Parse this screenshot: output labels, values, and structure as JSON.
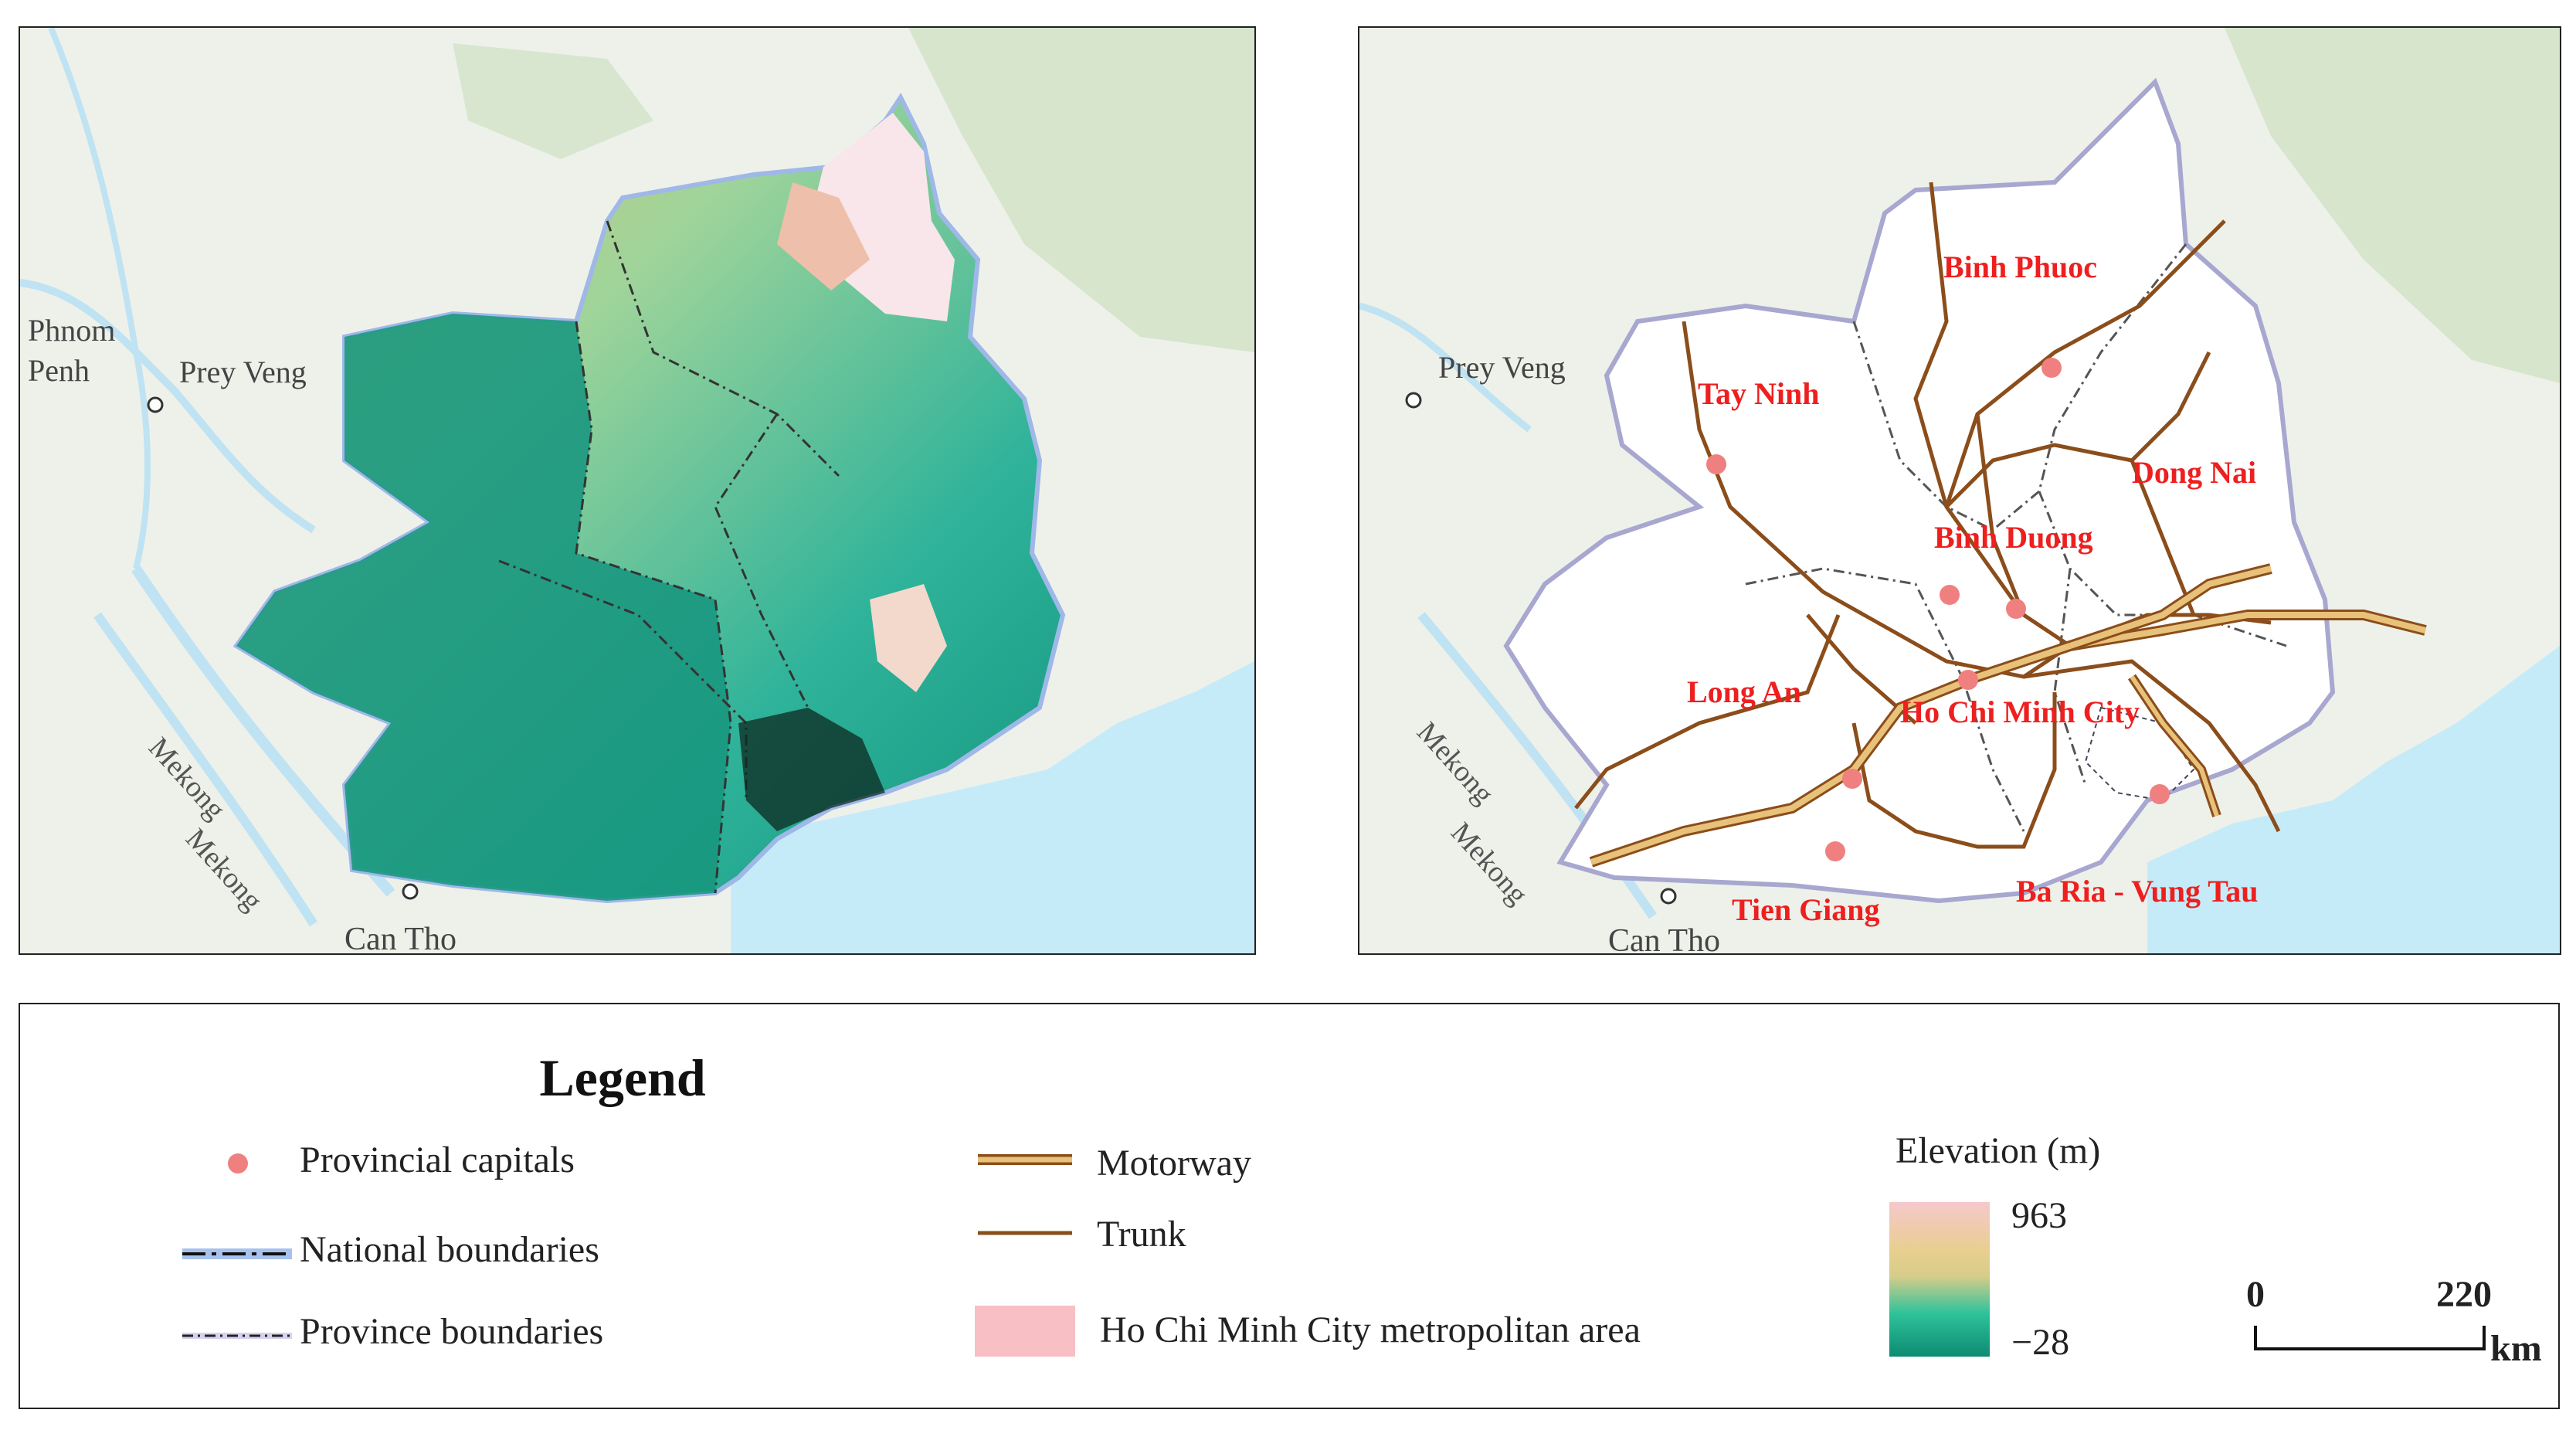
{
  "maps": {
    "left": {
      "places": {
        "phnom_penh_line1": "Phnom",
        "phnom_penh_line2": "Penh",
        "prey_veng": "Prey Veng",
        "can_tho": "Can Tho",
        "mekong_1": "Mekong",
        "mekong_2": "Mekong"
      }
    },
    "right": {
      "places": {
        "prey_veng": "Prey Veng",
        "can_tho": "Can Tho",
        "mekong_1": "Mekong",
        "mekong_2": "Mekong"
      },
      "provinces": [
        "Binh Phuoc",
        "Tay Ninh",
        "Dong Nai",
        "Binh Duong",
        "Long An",
        "Ho Chi Minh City",
        "Tien Giang",
        "Ba Ria - Vung Tau"
      ]
    }
  },
  "legend": {
    "title": "Legend",
    "items": {
      "provincial_capitals": "Provincial capitals",
      "national_boundaries": "National boundaries",
      "province_boundaries": "Province boundaries",
      "motorway": "Motorway",
      "trunk": "Trunk",
      "metro_area": "Ho Chi Minh City metropolitan area"
    },
    "elevation": {
      "title": "Elevation (m)",
      "max": "963",
      "min": "−28"
    },
    "scale": {
      "start": "0",
      "end": "220",
      "unit": "km"
    }
  },
  "colors": {
    "capital": "#f08080",
    "motorway": "#d9b05a",
    "trunk": "#8b4d1a",
    "metro": "#f8c0c4",
    "sea": "#c6ebf8",
    "elev_high": "#f4c8cc",
    "elev_mid": "#e2c56e",
    "elev_low": "#16a08a"
  }
}
